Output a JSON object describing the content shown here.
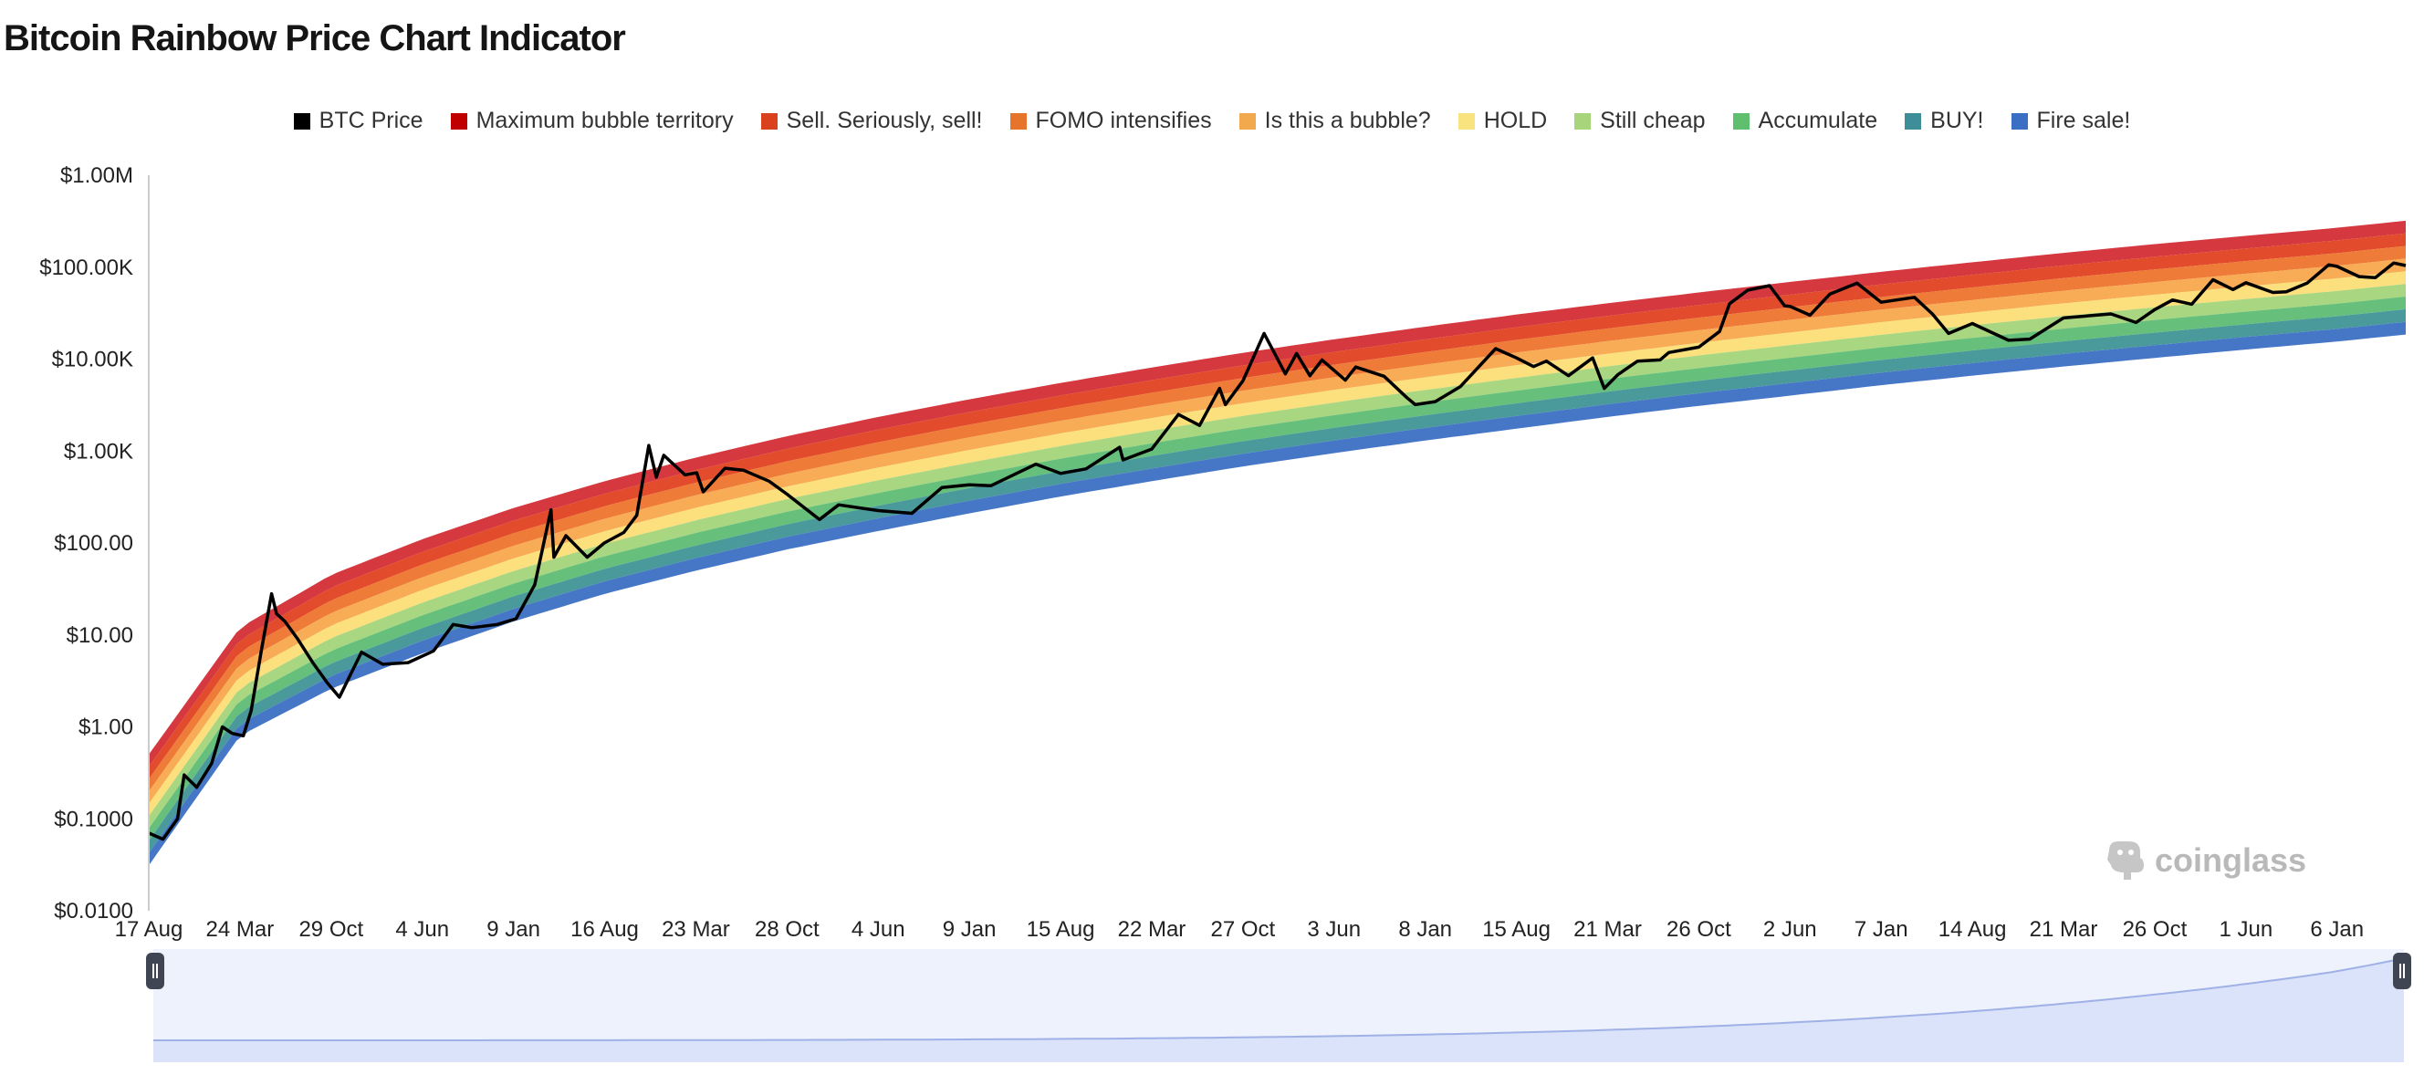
{
  "page": {
    "title": "Bitcoin Rainbow Price Chart Indicator",
    "watermark": "coinglass"
  },
  "colors": {
    "btc_line": "#000000",
    "zoom_fill": "#e6ebfb",
    "zoom_line": "#9fb1e6",
    "axis": "#cccccc"
  },
  "chart_data": {
    "type": "area",
    "title": "Bitcoin Rainbow Price Chart Indicator",
    "yscale": "log",
    "ylim": [
      0.01,
      1000000
    ],
    "ytick_values": [
      0.01,
      0.1,
      1,
      10,
      100,
      1000,
      10000,
      100000,
      1000000
    ],
    "yticks": [
      "$0.0100",
      "$0.1000",
      "$1.00",
      "$10.00",
      "$100.00",
      "$1.00K",
      "$10.00K",
      "$100.00K",
      "$1.00M"
    ],
    "xticks": [
      "17 Aug",
      "24 Mar",
      "29 Oct",
      "4 Jun",
      "9 Jan",
      "16 Aug",
      "23 Mar",
      "28 Oct",
      "4 Jun",
      "9 Jan",
      "15 Aug",
      "22 Mar",
      "27 Oct",
      "3 Jun",
      "8 Jan",
      "15 Aug",
      "21 Mar",
      "26 Oct",
      "2 Jun",
      "7 Jan",
      "14 Aug",
      "21 Mar",
      "26 Oct",
      "1 Jun",
      "6 Jan"
    ],
    "xtick_dates": [
      "2010-08-17",
      "2011-03-24",
      "2011-10-29",
      "2012-06-04",
      "2013-01-09",
      "2013-08-16",
      "2014-03-23",
      "2014-10-28",
      "2015-06-04",
      "2016-01-09",
      "2016-08-15",
      "2017-03-22",
      "2017-10-27",
      "2018-06-03",
      "2019-01-08",
      "2019-08-15",
      "2020-03-21",
      "2020-10-26",
      "2021-06-02",
      "2022-01-07",
      "2022-08-14",
      "2023-03-21",
      "2023-10-26",
      "2024-06-01",
      "2025-01-06"
    ],
    "x_range": [
      "2010-08-17",
      "2025-06-20"
    ],
    "legend_position": "top",
    "grid": false,
    "bands": [
      {
        "name": "Maximum bubble territory",
        "color": "#c00000",
        "fill": "#d6383f"
      },
      {
        "name": "Sell. Seriously, sell!",
        "color": "#d9421c",
        "fill": "#e24b2b"
      },
      {
        "name": "FOMO intensifies",
        "color": "#e6752b",
        "fill": "#ee7b37"
      },
      {
        "name": "Is this a bubble?",
        "color": "#f2a94e",
        "fill": "#f7ac55"
      },
      {
        "name": "HOLD",
        "color": "#f9e37e",
        "fill": "#fbe07d"
      },
      {
        "name": "Still cheap",
        "color": "#a8d47b",
        "fill": "#a9d680"
      },
      {
        "name": "Accumulate",
        "color": "#5fbf6f",
        "fill": "#66c07b"
      },
      {
        "name": "BUY!",
        "color": "#3e8e9a",
        "fill": "#4a9a9c"
      },
      {
        "name": "Fire sale!",
        "color": "#3a6fc4",
        "fill": "#4677c7"
      }
    ],
    "band_bottom_points": [
      {
        "date": "2010-08-17",
        "value": 0.031
      },
      {
        "date": "2011-03-24",
        "value": 0.8
      },
      {
        "date": "2011-10-29",
        "value": 2.6
      },
      {
        "date": "2012-06-04",
        "value": 6.3
      },
      {
        "date": "2013-01-09",
        "value": 14
      },
      {
        "date": "2013-08-16",
        "value": 28
      },
      {
        "date": "2014-03-23",
        "value": 50
      },
      {
        "date": "2014-10-28",
        "value": 85
      },
      {
        "date": "2015-06-04",
        "value": 135
      },
      {
        "date": "2016-01-09",
        "value": 210
      },
      {
        "date": "2016-08-15",
        "value": 320
      },
      {
        "date": "2017-03-22",
        "value": 470
      },
      {
        "date": "2017-10-27",
        "value": 680
      },
      {
        "date": "2018-06-03",
        "value": 950
      },
      {
        "date": "2019-01-08",
        "value": 1300
      },
      {
        "date": "2019-08-15",
        "value": 1750
      },
      {
        "date": "2020-03-21",
        "value": 2350
      },
      {
        "date": "2020-10-26",
        "value": 3100
      },
      {
        "date": "2021-06-02",
        "value": 4000
      },
      {
        "date": "2022-01-07",
        "value": 5200
      },
      {
        "date": "2022-08-14",
        "value": 6600
      },
      {
        "date": "2023-03-21",
        "value": 8300
      },
      {
        "date": "2023-10-26",
        "value": 10300
      },
      {
        "date": "2024-06-01",
        "value": 12700
      },
      {
        "date": "2025-01-06",
        "value": 15500
      },
      {
        "date": "2025-06-20",
        "value": 18500
      }
    ],
    "band_top_points": [
      {
        "date": "2010-08-17",
        "value": 0.5
      },
      {
        "date": "2011-03-24",
        "value": 12
      },
      {
        "date": "2011-10-29",
        "value": 45
      },
      {
        "date": "2012-06-04",
        "value": 110
      },
      {
        "date": "2013-01-09",
        "value": 240
      },
      {
        "date": "2013-08-16",
        "value": 470
      },
      {
        "date": "2014-03-23",
        "value": 850
      },
      {
        "date": "2014-10-28",
        "value": 1450
      },
      {
        "date": "2015-06-04",
        "value": 2350
      },
      {
        "date": "2016-01-09",
        "value": 3650
      },
      {
        "date": "2016-08-15",
        "value": 5500
      },
      {
        "date": "2017-03-22",
        "value": 8100
      },
      {
        "date": "2017-10-27",
        "value": 11700
      },
      {
        "date": "2018-06-03",
        "value": 16400
      },
      {
        "date": "2019-01-08",
        "value": 22500
      },
      {
        "date": "2019-08-15",
        "value": 30500
      },
      {
        "date": "2020-03-21",
        "value": 40500
      },
      {
        "date": "2020-10-26",
        "value": 53000
      },
      {
        "date": "2021-06-02",
        "value": 69000
      },
      {
        "date": "2022-01-07",
        "value": 89000
      },
      {
        "date": "2022-08-14",
        "value": 113000
      },
      {
        "date": "2023-03-21",
        "value": 143000
      },
      {
        "date": "2023-10-26",
        "value": 178000
      },
      {
        "date": "2024-06-01",
        "value": 219000
      },
      {
        "date": "2025-01-06",
        "value": 268000
      },
      {
        "date": "2025-06-20",
        "value": 320000
      }
    ],
    "series": [
      {
        "name": "BTC Price",
        "color": "#000000",
        "points": [
          {
            "date": "2010-08-17",
            "value": 0.07
          },
          {
            "date": "2010-09-20",
            "value": 0.06
          },
          {
            "date": "2010-10-25",
            "value": 0.1
          },
          {
            "date": "2010-11-10",
            "value": 0.3
          },
          {
            "date": "2010-12-10",
            "value": 0.22
          },
          {
            "date": "2011-01-15",
            "value": 0.4
          },
          {
            "date": "2011-02-10",
            "value": 1.0
          },
          {
            "date": "2011-03-05",
            "value": 0.85
          },
          {
            "date": "2011-04-01",
            "value": 0.8
          },
          {
            "date": "2011-04-20",
            "value": 1.5
          },
          {
            "date": "2011-05-15",
            "value": 7
          },
          {
            "date": "2011-06-08",
            "value": 28
          },
          {
            "date": "2011-06-20",
            "value": 17
          },
          {
            "date": "2011-07-10",
            "value": 14
          },
          {
            "date": "2011-08-10",
            "value": 9
          },
          {
            "date": "2011-09-15",
            "value": 5
          },
          {
            "date": "2011-10-20",
            "value": 3
          },
          {
            "date": "2011-11-18",
            "value": 2.1
          },
          {
            "date": "2012-01-10",
            "value": 6.5
          },
          {
            "date": "2012-03-01",
            "value": 4.8
          },
          {
            "date": "2012-05-01",
            "value": 5
          },
          {
            "date": "2012-07-01",
            "value": 6.7
          },
          {
            "date": "2012-08-17",
            "value": 13
          },
          {
            "date": "2012-10-01",
            "value": 12
          },
          {
            "date": "2012-12-01",
            "value": 13
          },
          {
            "date": "2013-01-15",
            "value": 15
          },
          {
            "date": "2013-03-01",
            "value": 35
          },
          {
            "date": "2013-04-09",
            "value": 230
          },
          {
            "date": "2013-04-16",
            "value": 70
          },
          {
            "date": "2013-05-15",
            "value": 120
          },
          {
            "date": "2013-07-05",
            "value": 70
          },
          {
            "date": "2013-08-15",
            "value": 100
          },
          {
            "date": "2013-10-01",
            "value": 130
          },
          {
            "date": "2013-11-01",
            "value": 200
          },
          {
            "date": "2013-11-30",
            "value": 1150
          },
          {
            "date": "2013-12-18",
            "value": 520
          },
          {
            "date": "2014-01-05",
            "value": 900
          },
          {
            "date": "2014-02-25",
            "value": 550
          },
          {
            "date": "2014-03-25",
            "value": 580
          },
          {
            "date": "2014-04-10",
            "value": 360
          },
          {
            "date": "2014-06-01",
            "value": 650
          },
          {
            "date": "2014-07-15",
            "value": 620
          },
          {
            "date": "2014-09-15",
            "value": 470
          },
          {
            "date": "2014-10-28",
            "value": 340
          },
          {
            "date": "2015-01-14",
            "value": 180
          },
          {
            "date": "2015-03-01",
            "value": 260
          },
          {
            "date": "2015-06-04",
            "value": 225
          },
          {
            "date": "2015-08-24",
            "value": 210
          },
          {
            "date": "2015-11-04",
            "value": 400
          },
          {
            "date": "2016-01-09",
            "value": 430
          },
          {
            "date": "2016-03-01",
            "value": 420
          },
          {
            "date": "2016-06-17",
            "value": 720
          },
          {
            "date": "2016-08-15",
            "value": 570
          },
          {
            "date": "2016-10-15",
            "value": 640
          },
          {
            "date": "2017-01-04",
            "value": 1100
          },
          {
            "date": "2017-01-12",
            "value": 800
          },
          {
            "date": "2017-03-22",
            "value": 1050
          },
          {
            "date": "2017-05-25",
            "value": 2500
          },
          {
            "date": "2017-07-15",
            "value": 1900
          },
          {
            "date": "2017-09-01",
            "value": 4800
          },
          {
            "date": "2017-09-15",
            "value": 3200
          },
          {
            "date": "2017-10-27",
            "value": 5800
          },
          {
            "date": "2017-12-17",
            "value": 19000
          },
          {
            "date": "2018-02-06",
            "value": 6900
          },
          {
            "date": "2018-03-05",
            "value": 11500
          },
          {
            "date": "2018-04-06",
            "value": 6600
          },
          {
            "date": "2018-05-05",
            "value": 9800
          },
          {
            "date": "2018-06-30",
            "value": 5900
          },
          {
            "date": "2018-07-25",
            "value": 8200
          },
          {
            "date": "2018-10-01",
            "value": 6500
          },
          {
            "date": "2018-11-25",
            "value": 3800
          },
          {
            "date": "2018-12-15",
            "value": 3200
          },
          {
            "date": "2019-02-01",
            "value": 3450
          },
          {
            "date": "2019-04-02",
            "value": 5000
          },
          {
            "date": "2019-06-26",
            "value": 13000
          },
          {
            "date": "2019-08-15",
            "value": 10300
          },
          {
            "date": "2019-09-25",
            "value": 8300
          },
          {
            "date": "2019-10-26",
            "value": 9500
          },
          {
            "date": "2019-12-18",
            "value": 6600
          },
          {
            "date": "2020-02-14",
            "value": 10300
          },
          {
            "date": "2020-03-13",
            "value": 4800
          },
          {
            "date": "2020-04-15",
            "value": 6800
          },
          {
            "date": "2020-06-01",
            "value": 9500
          },
          {
            "date": "2020-07-25",
            "value": 9800
          },
          {
            "date": "2020-08-15",
            "value": 11800
          },
          {
            "date": "2020-10-26",
            "value": 13500
          },
          {
            "date": "2020-12-15",
            "value": 20000
          },
          {
            "date": "2021-01-08",
            "value": 40000
          },
          {
            "date": "2021-02-20",
            "value": 56000
          },
          {
            "date": "2021-04-14",
            "value": 63000
          },
          {
            "date": "2021-05-20",
            "value": 38000
          },
          {
            "date": "2021-06-02",
            "value": 37500
          },
          {
            "date": "2021-07-20",
            "value": 30000
          },
          {
            "date": "2021-09-06",
            "value": 51000
          },
          {
            "date": "2021-11-10",
            "value": 67000
          },
          {
            "date": "2022-01-07",
            "value": 41500
          },
          {
            "date": "2022-03-28",
            "value": 47000
          },
          {
            "date": "2022-05-10",
            "value": 31000
          },
          {
            "date": "2022-06-18",
            "value": 19000
          },
          {
            "date": "2022-08-14",
            "value": 24400
          },
          {
            "date": "2022-11-09",
            "value": 16000
          },
          {
            "date": "2022-12-30",
            "value": 16500
          },
          {
            "date": "2023-03-21",
            "value": 28000
          },
          {
            "date": "2023-07-13",
            "value": 31000
          },
          {
            "date": "2023-09-11",
            "value": 25000
          },
          {
            "date": "2023-10-26",
            "value": 34500
          },
          {
            "date": "2023-12-08",
            "value": 44000
          },
          {
            "date": "2024-01-23",
            "value": 39500
          },
          {
            "date": "2024-03-14",
            "value": 73000
          },
          {
            "date": "2024-05-01",
            "value": 57000
          },
          {
            "date": "2024-06-01",
            "value": 67700
          },
          {
            "date": "2024-08-05",
            "value": 53000
          },
          {
            "date": "2024-09-06",
            "value": 54000
          },
          {
            "date": "2024-10-26",
            "value": 67000
          },
          {
            "date": "2024-12-17",
            "value": 106000
          },
          {
            "date": "2025-01-06",
            "value": 102000
          },
          {
            "date": "2025-02-28",
            "value": 79000
          },
          {
            "date": "2025-04-08",
            "value": 77000
          },
          {
            "date": "2025-05-22",
            "value": 111000
          },
          {
            "date": "2025-06-20",
            "value": 104000
          }
        ]
      }
    ]
  }
}
